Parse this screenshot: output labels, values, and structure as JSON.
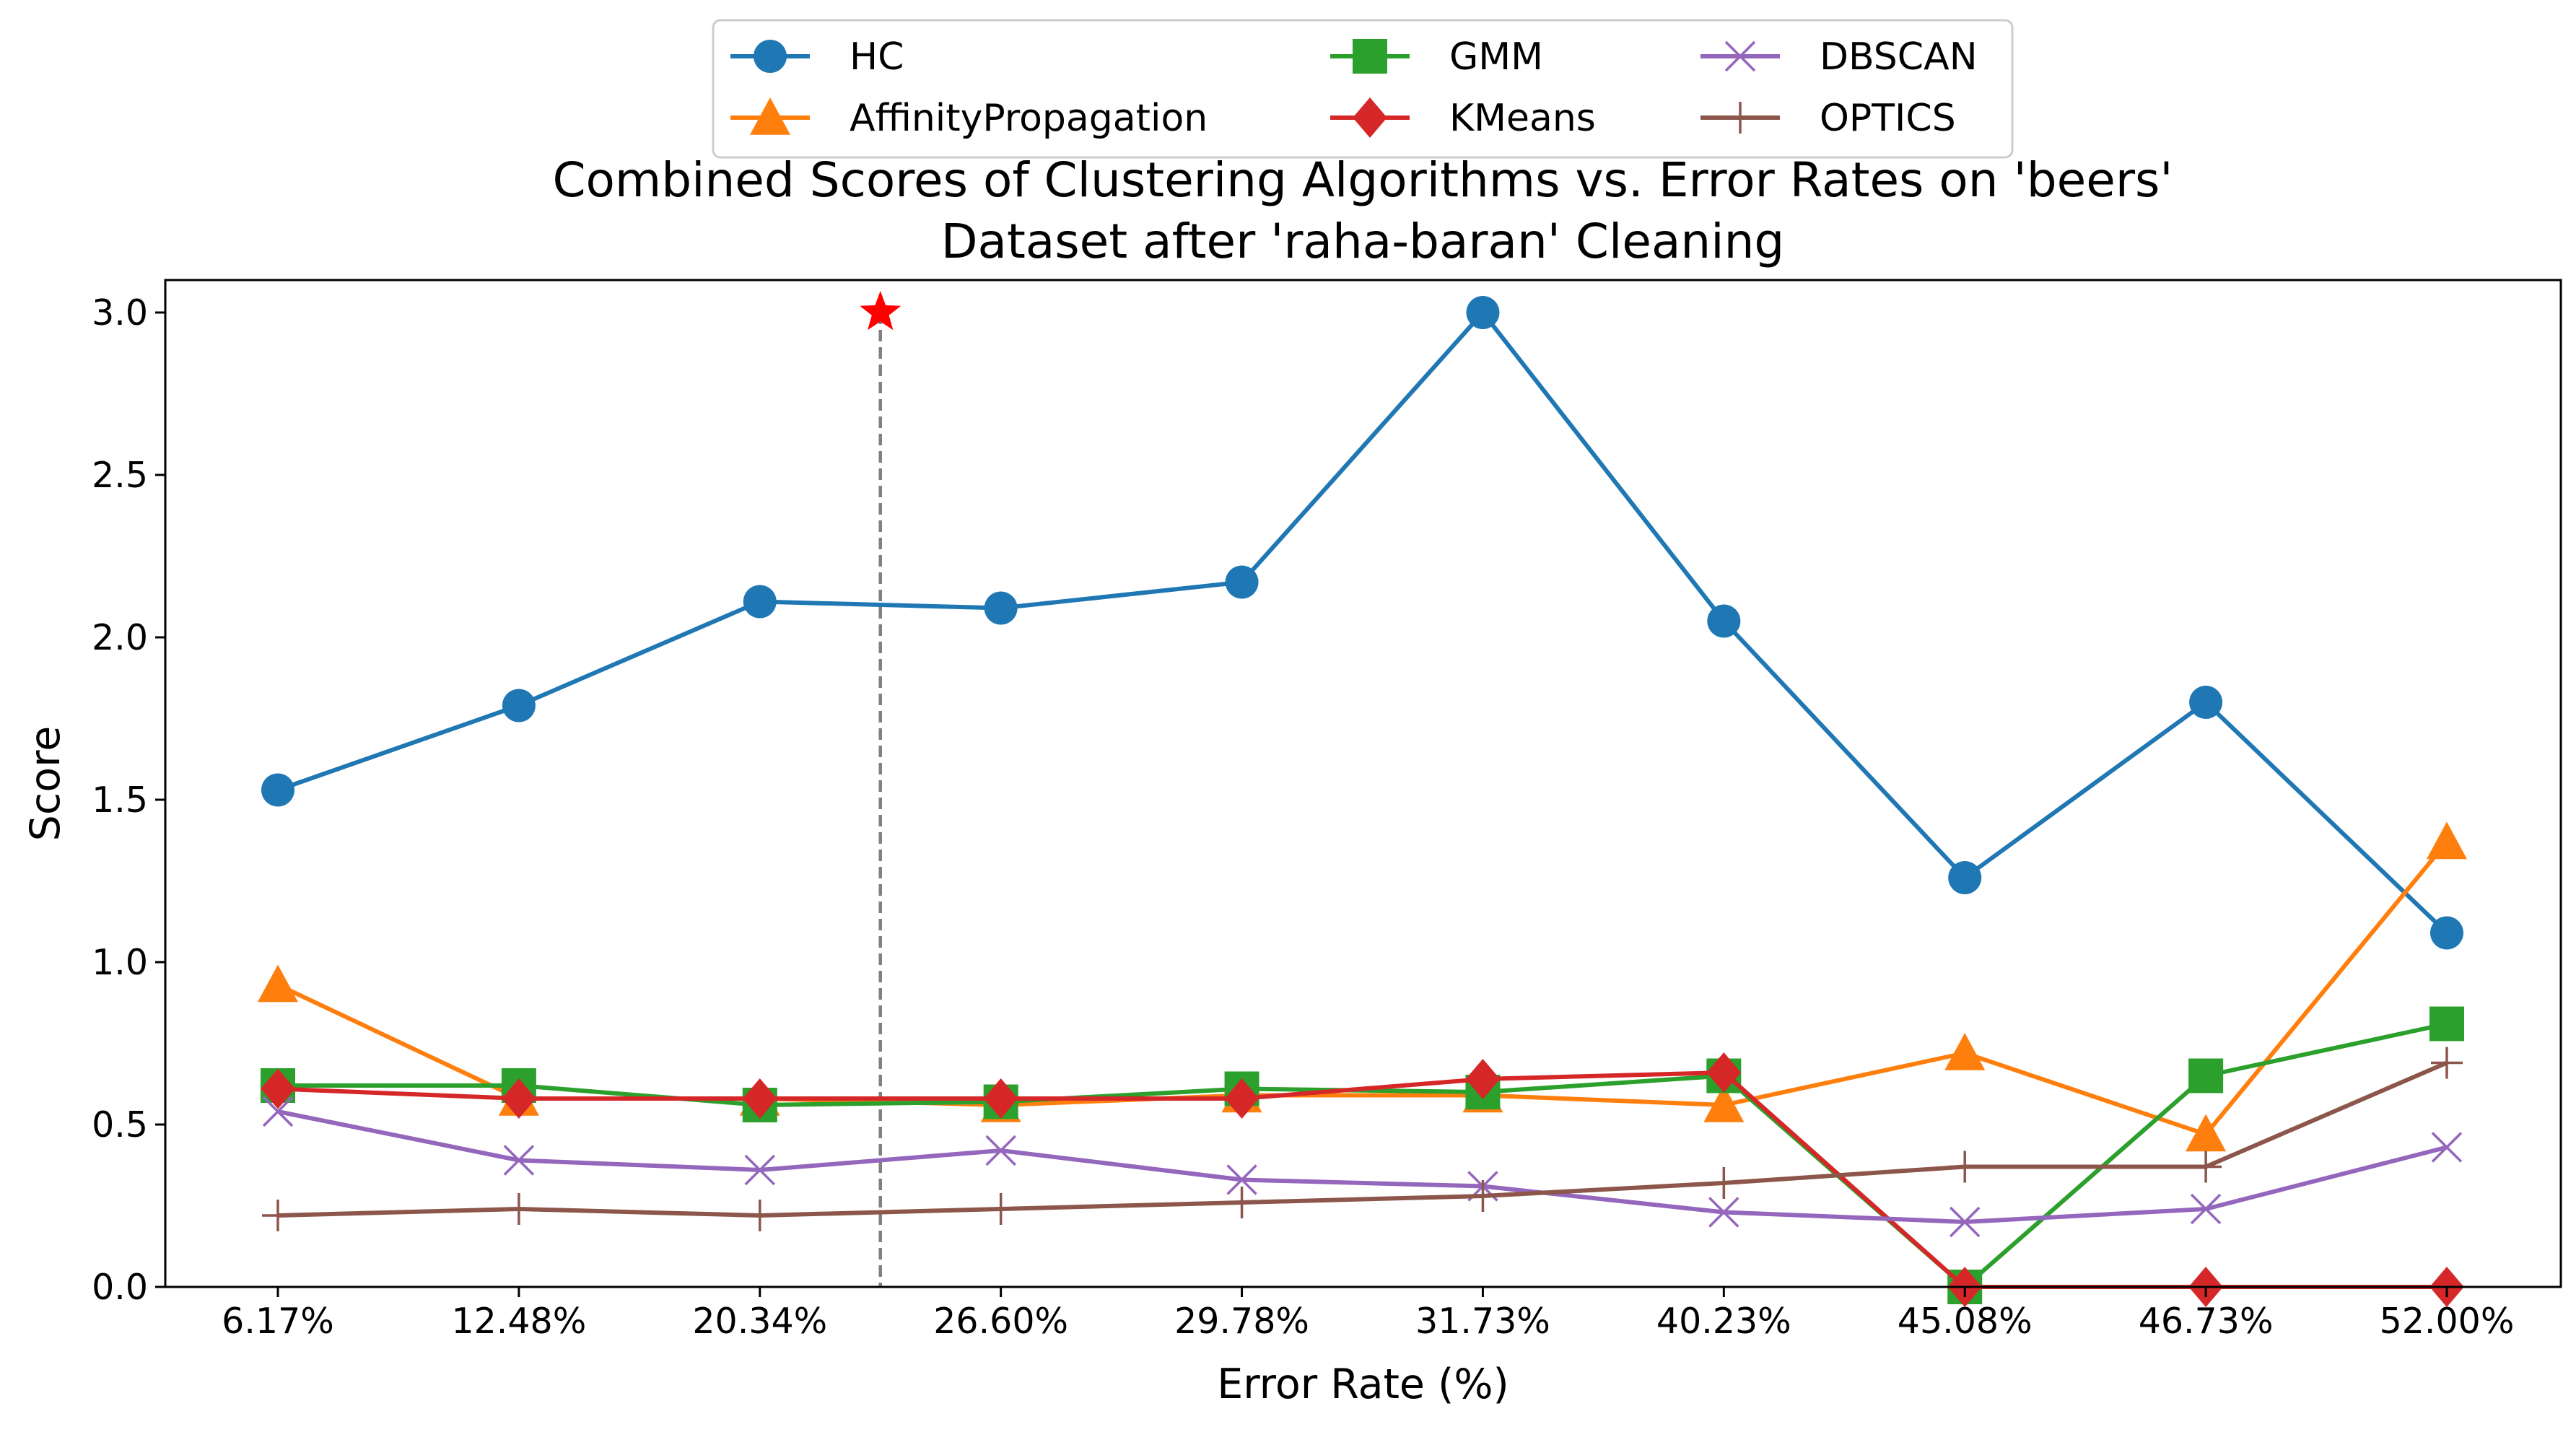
{
  "chart_data": {
    "type": "line",
    "title_lines": [
      "Combined Scores of Clustering Algorithms vs. Error Rates on 'beers'",
      "Dataset after 'raha-baran' Cleaning"
    ],
    "xlabel": "Error Rate (%)",
    "ylabel": "Score",
    "categories": [
      "6.17%",
      "12.48%",
      "20.34%",
      "26.60%",
      "29.78%",
      "31.73%",
      "40.23%",
      "45.08%",
      "46.73%",
      "52.00%"
    ],
    "ylim": [
      0.0,
      3.1
    ],
    "yticks": [
      "0.0",
      "0.5",
      "1.0",
      "1.5",
      "2.0",
      "2.5",
      "3.0"
    ],
    "grid": false,
    "legend_position": "top-center",
    "series": [
      {
        "name": "HC",
        "color": "#1f77b4",
        "marker": "circle",
        "values": [
          1.53,
          1.79,
          2.11,
          2.09,
          2.17,
          3.0,
          2.05,
          1.26,
          1.8,
          1.09
        ]
      },
      {
        "name": "AffinityPropagation",
        "color": "#ff7f0e",
        "marker": "triangle",
        "values": [
          0.93,
          0.58,
          0.58,
          0.56,
          0.59,
          0.59,
          0.56,
          0.72,
          0.47,
          1.37
        ]
      },
      {
        "name": "GMM",
        "color": "#2ca02c",
        "marker": "square",
        "values": [
          0.62,
          0.62,
          0.56,
          0.57,
          0.61,
          0.6,
          0.65,
          0.0,
          0.65,
          0.81
        ]
      },
      {
        "name": "KMeans",
        "color": "#d62728",
        "marker": "diamond",
        "values": [
          0.61,
          0.58,
          0.58,
          0.58,
          0.58,
          0.64,
          0.66,
          0.0,
          0.0,
          0.0
        ]
      },
      {
        "name": "DBSCAN",
        "color": "#9467bd",
        "marker": "x",
        "values": [
          0.54,
          0.39,
          0.36,
          0.42,
          0.33,
          0.31,
          0.23,
          0.2,
          0.24,
          0.43
        ]
      },
      {
        "name": "OPTICS",
        "color": "#8c564b",
        "marker": "plus",
        "values": [
          0.22,
          0.24,
          0.22,
          0.24,
          0.26,
          0.28,
          0.32,
          0.37,
          0.37,
          0.69
        ]
      }
    ],
    "annotation": {
      "type": "vertical-dashed-line-with-star",
      "x_between": [
        "20.34%",
        "26.60%"
      ],
      "star_y": 3.0,
      "line_color": "#808080",
      "star_color": "#ff0000"
    }
  }
}
